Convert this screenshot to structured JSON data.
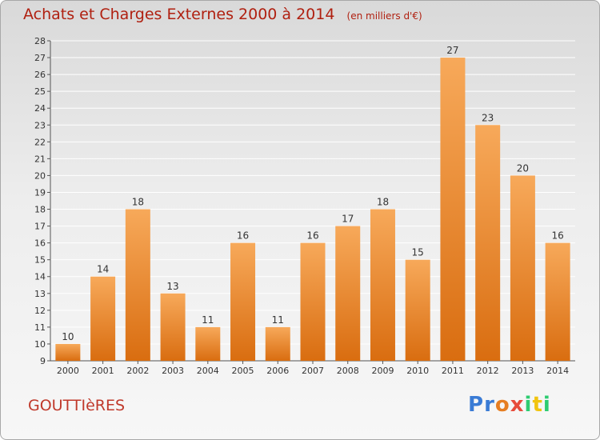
{
  "title": "Achats et Charges Externes 2000 à 2014",
  "unit_label": "(en milliers d'€)",
  "commune": "GOUTTIèRES",
  "logo": {
    "letters": [
      "P",
      "r",
      "o",
      "x",
      "i",
      "t",
      "i"
    ],
    "colors": [
      "#3a7bd5",
      "#3a7bd5",
      "#e67e22",
      "#e74c3c",
      "#2ecc71",
      "#f1c40f",
      "#2ecc71"
    ]
  },
  "colors": {
    "bar_top": "#f7a95a",
    "bar_bottom": "#d96d10",
    "title": "#b02010",
    "grid": "#ffffff"
  },
  "chart_data": {
    "type": "bar",
    "categories": [
      "2000",
      "2001",
      "2002",
      "2003",
      "2004",
      "2005",
      "2006",
      "2007",
      "2008",
      "2009",
      "2010",
      "2011",
      "2012",
      "2013",
      "2014"
    ],
    "values": [
      10,
      14,
      18,
      13,
      11,
      16,
      11,
      16,
      17,
      18,
      15,
      27,
      23,
      20,
      16
    ],
    "ylim": [
      9,
      28
    ],
    "yticks": [
      9,
      10,
      11,
      12,
      13,
      14,
      15,
      16,
      17,
      18,
      19,
      20,
      21,
      22,
      23,
      24,
      25,
      26,
      27,
      28
    ],
    "grid": true
  }
}
